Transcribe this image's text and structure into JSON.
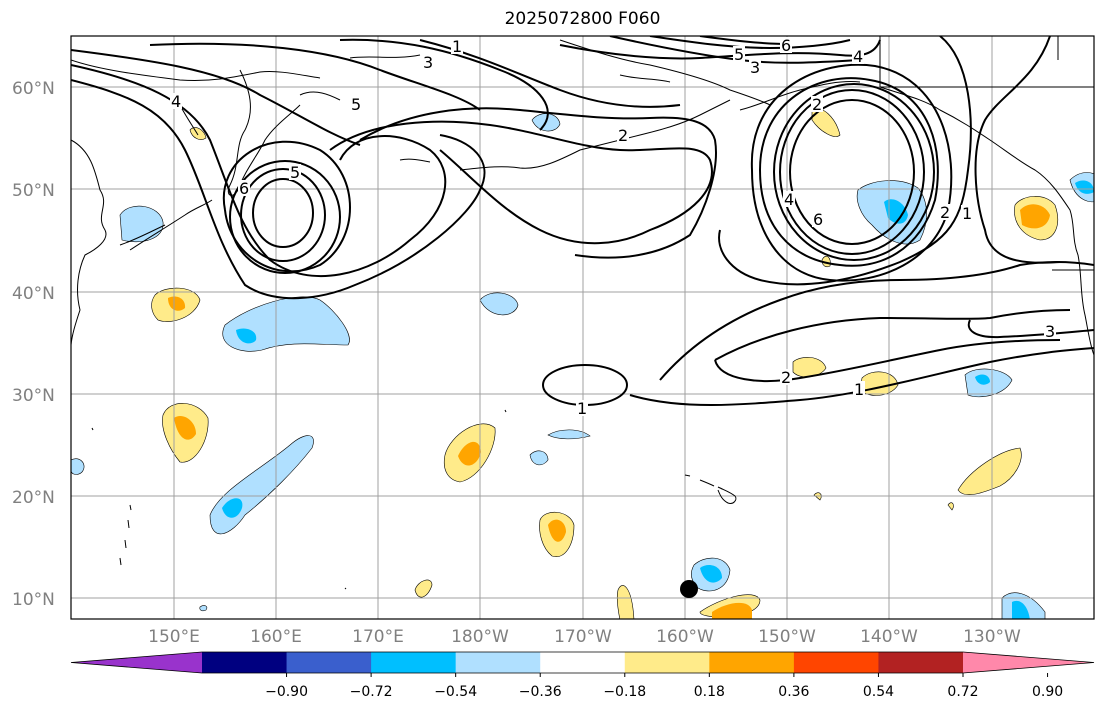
{
  "title": "2025072800 F060",
  "lat_labels": [
    "60°N",
    "50°N",
    "40°N",
    "30°N",
    "20°N",
    "10°N"
  ],
  "lon_labels": [
    "150°E",
    "160°E",
    "170°E",
    "180°W",
    "170°W",
    "160°W",
    "150°W",
    "140°W",
    "130°W"
  ],
  "colorbar": {
    "ticks": [
      "−0.90",
      "−0.72",
      "−0.54",
      "−0.36",
      "−0.18",
      "0.18",
      "0.36",
      "0.54",
      "0.72",
      "0.90"
    ],
    "colors": [
      "#9933cc",
      "#000080",
      "#3a5fcd",
      "#00bfff",
      "#b0e0ff",
      "#ffffff",
      "#ffeb8a",
      "#ffa500",
      "#ff4500",
      "#b22222",
      "#ff88aa"
    ]
  },
  "contour_labels": [
    "1",
    "2",
    "3",
    "4",
    "5",
    "6"
  ],
  "marker": "station-dot"
}
